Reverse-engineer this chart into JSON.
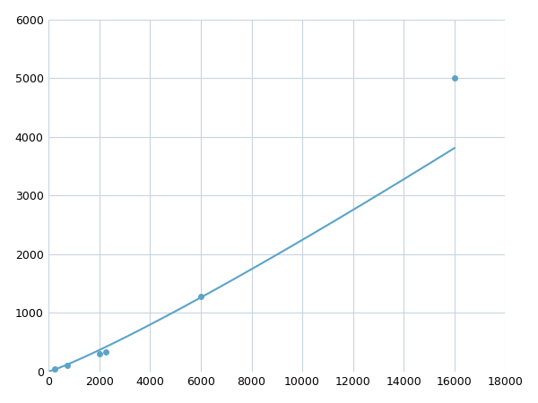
{
  "x_data": [
    250,
    750,
    2000,
    2250,
    6000,
    16000
  ],
  "y_data": [
    50,
    100,
    300,
    325,
    1275,
    5000
  ],
  "line_color": "#5ba3c9",
  "marker_color": "#5ba3c9",
  "marker_size": 5,
  "linewidth": 1.5,
  "xlim": [
    0,
    18000
  ],
  "ylim": [
    0,
    6000
  ],
  "xticks": [
    0,
    2000,
    4000,
    6000,
    8000,
    10000,
    12000,
    14000,
    16000,
    18000
  ],
  "yticks": [
    0,
    1000,
    2000,
    3000,
    4000,
    5000,
    6000
  ],
  "grid_color": "#c8d4e0",
  "background_color": "#ffffff",
  "figsize": [
    6.0,
    4.5
  ],
  "dpi": 100
}
